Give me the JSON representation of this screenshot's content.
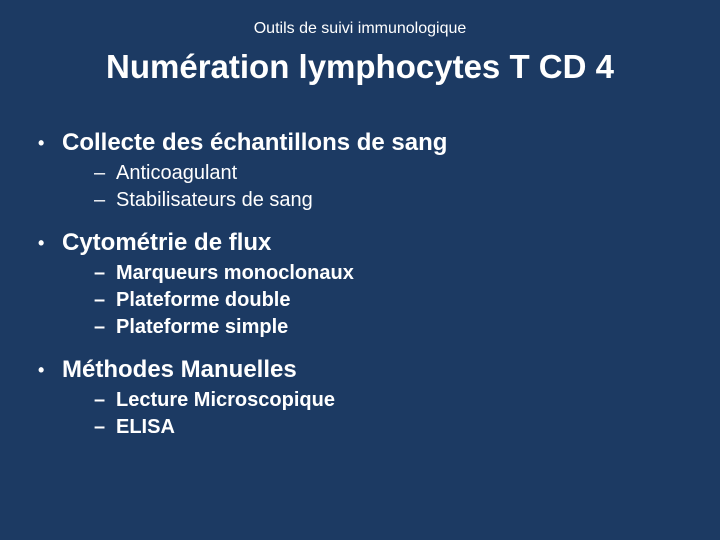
{
  "slide": {
    "background_color": "#1c3a63",
    "text_color": "#ffffff",
    "font_family": "Verdana, sans-serif",
    "overline": {
      "text": "Outils de suivi immunologique",
      "fontsize": 16,
      "weight": "normal",
      "align": "center"
    },
    "title": {
      "text": "Numération lymphocytes T CD 4",
      "fontsize": 33,
      "weight": "bold",
      "align": "center"
    },
    "bullets": [
      {
        "text": "Collecte des échantillons de sang",
        "fontsize": 24,
        "weight": "bold",
        "marker": "•",
        "sub_weight": "normal",
        "subitems": [
          {
            "text": "Anticoagulant",
            "marker": "–"
          },
          {
            "text": "Stabilisateurs de sang",
            "marker": "–"
          }
        ]
      },
      {
        "text": "Cytométrie de flux",
        "fontsize": 24,
        "weight": "bold",
        "marker": "•",
        "sub_weight": "bold",
        "subitems": [
          {
            "text": "Marqueurs monoclonaux",
            "marker": "–"
          },
          {
            "text": "Plateforme double",
            "marker": "–"
          },
          {
            "text": "Plateforme simple",
            "marker": "–"
          }
        ]
      },
      {
        "text": "Méthodes Manuelles",
        "fontsize": 24,
        "weight": "bold",
        "marker": "•",
        "sub_weight": "bold",
        "subitems": [
          {
            "text": "Lecture Microscopique",
            "marker": "–"
          },
          {
            "text": "ELISA",
            "marker": "–"
          }
        ]
      }
    ]
  }
}
